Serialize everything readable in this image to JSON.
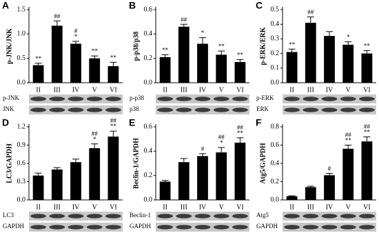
{
  "chart_data": [
    {
      "type": "bar",
      "panel_label": "A",
      "ylabel": "p-JNK/JNK",
      "color": "#000000",
      "categories": [
        "II",
        "III",
        "IV",
        "V",
        "VI"
      ],
      "values": [
        0.36,
        1.17,
        0.8,
        0.5,
        0.34
      ],
      "errors": [
        0.04,
        0.1,
        0.05,
        0.05,
        0.08
      ],
      "annotations": [
        [
          "**"
        ],
        [
          "##"
        ],
        [
          "#",
          "*"
        ],
        [
          "**"
        ],
        [
          "**"
        ]
      ],
      "ylim": [
        0,
        1.5
      ],
      "yticks": [
        {
          "value": 0,
          "label": "0.0"
        },
        0.5,
        {
          "value": 1,
          "label": "1.0"
        },
        1.5
      ],
      "blot_labels": [
        "p-JNK",
        "JNK"
      ]
    },
    {
      "type": "bar",
      "panel_label": "B",
      "ylabel": "p-p38/p38",
      "color": "#000000",
      "categories": [
        "II",
        "III",
        "IV",
        "V",
        "VI"
      ],
      "values": [
        0.21,
        0.46,
        0.32,
        0.23,
        0.17
      ],
      "errors": [
        0.02,
        0.02,
        0.05,
        0.03,
        0.02
      ],
      "annotations": [
        [
          "**"
        ],
        [
          "##"
        ],
        [
          "*"
        ],
        [
          "**"
        ],
        [
          "**"
        ]
      ],
      "ylim": [
        0,
        0.6
      ],
      "yticks": [
        {
          "value": 0,
          "label": "0.0"
        },
        0.2,
        0.4,
        0.6
      ],
      "blot_labels": [
        "p-p38",
        "p38"
      ]
    },
    {
      "type": "bar",
      "panel_label": "C",
      "ylabel": "p-ERK/ERK",
      "color": "#000000",
      "categories": [
        "II",
        "III",
        "IV",
        "V",
        "VI"
      ],
      "values": [
        0.21,
        0.41,
        0.32,
        0.26,
        0.2
      ],
      "errors": [
        0.02,
        0.04,
        0.03,
        0.02,
        0.02
      ],
      "annotations": [
        [
          "**"
        ],
        [
          "##"
        ],
        [],
        [
          "*"
        ],
        [
          "**"
        ]
      ],
      "ylim": [
        0,
        0.5
      ],
      "yticks": [
        {
          "value": 0,
          "label": "0.0"
        },
        0.1,
        0.2,
        0.3,
        0.4,
        0.5
      ],
      "blot_labels": [
        "p-ERK",
        "ERK"
      ]
    },
    {
      "type": "bar",
      "panel_label": "D",
      "ylabel": "LC3/GAPDH",
      "color": "#000000",
      "categories": [
        "II",
        "III",
        "IV",
        "V",
        "VI"
      ],
      "values": [
        0.4,
        0.5,
        0.62,
        0.85,
        1.04
      ],
      "errors": [
        0.04,
        0.03,
        0.05,
        0.07,
        0.09
      ],
      "annotations": [
        [],
        [],
        [],
        [
          "##",
          "*"
        ],
        [
          "##",
          "**"
        ]
      ],
      "ylim": [
        0,
        1.2
      ],
      "yticks": [
        {
          "value": 0,
          "label": "0.0"
        },
        0.3,
        0.6,
        0.9,
        1.2
      ],
      "blot_labels": [
        "LC3",
        "GAPDH"
      ]
    },
    {
      "type": "bar",
      "panel_label": "E",
      "ylabel": "Beclin-1/GAPDH",
      "color": "#000000",
      "categories": [
        "II",
        "III",
        "IV",
        "V",
        "VI"
      ],
      "values": [
        0.15,
        0.31,
        0.36,
        0.39,
        0.47
      ],
      "errors": [
        0.01,
        0.03,
        0.02,
        0.04,
        0.04
      ],
      "annotations": [
        [],
        [],
        [
          "#"
        ],
        [
          "##",
          "*"
        ],
        [
          "##",
          "**"
        ]
      ],
      "ylim": [
        0,
        0.6
      ],
      "yticks": [
        {
          "value": 0,
          "label": "0.0"
        },
        0.2,
        0.4,
        0.6
      ],
      "blot_labels": [
        "Beclin-1",
        "GAPDH"
      ]
    },
    {
      "type": "bar",
      "panel_label": "F",
      "ylabel": "Atg5/GAPDH",
      "color": "#000000",
      "categories": [
        "II",
        "III",
        "IV",
        "V",
        "VI"
      ],
      "values": [
        0.04,
        0.14,
        0.27,
        0.56,
        0.64
      ],
      "errors": [
        0.005,
        0.01,
        0.02,
        0.04,
        0.05
      ],
      "annotations": [
        [],
        [],
        [
          "#"
        ],
        [
          "##",
          "**"
        ],
        [
          "##",
          "**"
        ]
      ],
      "ylim": [
        0,
        0.8
      ],
      "yticks": [
        {
          "value": 0,
          "label": "0.0"
        },
        0.2,
        0.4,
        0.6,
        0.8
      ],
      "blot_labels": [
        "Atg5",
        "GAPDH"
      ]
    }
  ]
}
